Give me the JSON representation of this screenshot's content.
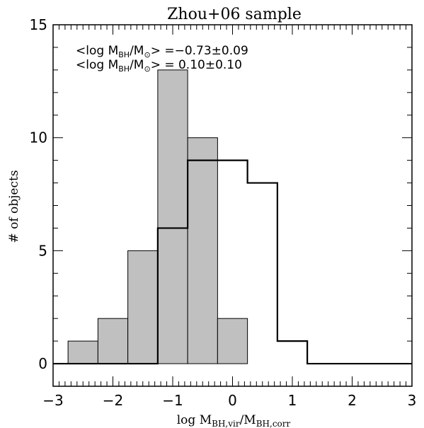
{
  "chart_data": {
    "type": "bar",
    "title": "Zhou+06 sample",
    "xlabel": {
      "prefix": "log M",
      "num_sub": "BH,vir",
      "sep": "/M",
      "den_sub": "BH,corr"
    },
    "ylabel": "# of objects",
    "xlim": [
      -3,
      3
    ],
    "ylim": [
      -1,
      15
    ],
    "x_ticks": [
      -3,
      -2,
      -1,
      0,
      1,
      2,
      3
    ],
    "x_tick_labels": [
      "−3",
      "−2",
      "−1",
      "0",
      "1",
      "2",
      "3"
    ],
    "y_ticks": [
      0,
      5,
      10,
      15
    ],
    "y_tick_labels": [
      "0",
      "5",
      "10",
      "15"
    ],
    "bin_width": 0.5,
    "series": [
      {
        "style": "filled",
        "fill_color": "#c0c0c0",
        "bin_edges": [
          -2.75,
          -2.25,
          -1.75,
          -1.25,
          -0.75,
          -0.25,
          0.25
        ],
        "values": [
          1,
          2,
          5,
          13,
          10,
          2
        ]
      },
      {
        "style": "step",
        "line_color": "#000000",
        "bin_edges": [
          -3.0,
          -2.75,
          -2.25,
          -1.75,
          -1.25,
          -0.75,
          -0.25,
          0.25,
          0.75,
          1.25,
          1.75,
          2.25,
          2.75,
          3.0
        ],
        "values": [
          0,
          0,
          0,
          0,
          6,
          9,
          9,
          8,
          1,
          0,
          0,
          0,
          0
        ]
      }
    ],
    "annotations": [
      {
        "prefix": "<log M",
        "sub": "BH",
        "mid": "/M",
        "sub2": "⊙",
        "suffix": "> =−0.73±0.09"
      },
      {
        "prefix": "<log M",
        "sub": "BH",
        "mid": "/M",
        "sub2": "⊙",
        "suffix": "> = 0.10±0.10"
      }
    ]
  }
}
